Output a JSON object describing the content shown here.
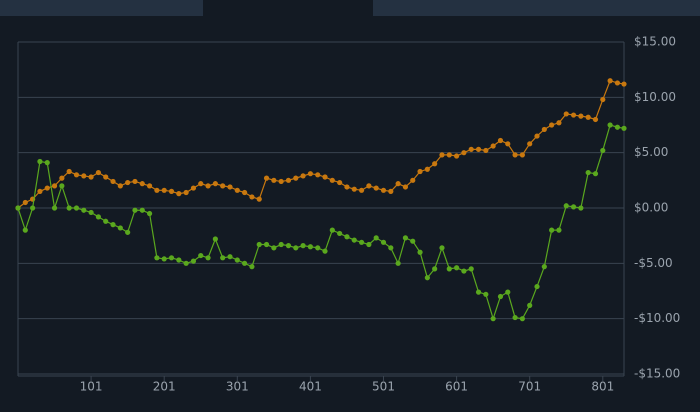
{
  "chart_data": {
    "type": "line",
    "x": [
      1,
      11,
      21,
      31,
      41,
      51,
      61,
      71,
      81,
      91,
      101,
      111,
      121,
      131,
      141,
      151,
      161,
      171,
      181,
      191,
      201,
      211,
      221,
      231,
      241,
      251,
      261,
      271,
      281,
      291,
      301,
      311,
      321,
      331,
      341,
      351,
      361,
      371,
      381,
      391,
      401,
      411,
      421,
      431,
      441,
      451,
      461,
      471,
      481,
      491,
      501,
      511,
      521,
      531,
      541,
      551,
      561,
      571,
      581,
      591,
      601,
      611,
      621,
      631,
      641,
      651,
      661,
      671,
      681,
      691,
      701,
      711,
      721,
      731,
      741,
      751,
      761,
      771,
      781,
      791,
      801,
      811,
      821,
      830
    ],
    "series": [
      {
        "color": "#c8780f",
        "values": [
          0,
          0.5,
          0.8,
          1.5,
          1.8,
          2.0,
          2.7,
          3.3,
          3.0,
          2.9,
          2.8,
          3.2,
          2.8,
          2.4,
          2.0,
          2.3,
          2.4,
          2.2,
          2.0,
          1.6,
          1.6,
          1.5,
          1.3,
          1.4,
          1.8,
          2.2,
          2.0,
          2.2,
          2.0,
          1.9,
          1.6,
          1.4,
          1.0,
          0.8,
          2.7,
          2.5,
          2.4,
          2.5,
          2.7,
          2.9,
          3.1,
          3.0,
          2.8,
          2.5,
          2.3,
          1.9,
          1.7,
          1.6,
          2.0,
          1.8,
          1.6,
          1.5,
          2.2,
          1.9,
          2.5,
          3.3,
          3.5,
          4.0,
          4.8,
          4.8,
          4.7,
          5.0,
          5.3,
          5.3,
          5.2,
          5.6,
          6.1,
          5.8,
          4.8,
          4.8,
          5.8,
          6.5,
          7.1,
          7.5,
          7.7,
          8.5,
          8.4,
          8.3,
          8.2,
          8.0,
          9.8,
          11.5,
          11.3,
          11.2
        ]
      },
      {
        "color": "#5aa81e",
        "values": [
          0,
          -2.0,
          0.0,
          4.2,
          4.1,
          0.0,
          2.0,
          0.0,
          0.0,
          -0.2,
          -0.4,
          -0.8,
          -1.2,
          -1.5,
          -1.8,
          -2.2,
          -0.2,
          -0.2,
          -0.5,
          -4.5,
          -4.6,
          -4.5,
          -4.7,
          -5.0,
          -4.8,
          -4.3,
          -4.5,
          -2.8,
          -4.5,
          -4.4,
          -4.7,
          -5.0,
          -5.3,
          -3.3,
          -3.3,
          -3.6,
          -3.3,
          -3.4,
          -3.6,
          -3.4,
          -3.5,
          -3.6,
          -3.9,
          -2.0,
          -2.3,
          -2.6,
          -2.9,
          -3.1,
          -3.3,
          -2.7,
          -3.1,
          -3.6,
          -5.0,
          -2.7,
          -3.0,
          -4.0,
          -6.3,
          -5.5,
          -3.6,
          -5.5,
          -5.4,
          -5.7,
          -5.5,
          -7.6,
          -7.8,
          -10.0,
          -8.0,
          -7.6,
          -9.9,
          -10.0,
          -8.8,
          -7.1,
          -5.3,
          -2.0,
          -2.0,
          0.2,
          0.1,
          0.0,
          3.2,
          3.1,
          5.2,
          7.5,
          7.3,
          7.2
        ]
      }
    ],
    "xlim": [
      1,
      830
    ],
    "xticks": [
      101,
      201,
      301,
      401,
      501,
      601,
      701,
      801
    ],
    "ylim": [
      -15,
      15
    ],
    "yticks": [
      {
        "value": -15,
        "label": "-$15.00"
      },
      {
        "value": -10,
        "label": "-$10.00"
      },
      {
        "value": -5,
        "label": "-$5.00"
      },
      {
        "value": 0,
        "label": "$0.00"
      },
      {
        "value": 5,
        "label": "$5.00"
      },
      {
        "value": 10,
        "label": "$10.00"
      },
      {
        "value": 15,
        "label": "$15.00"
      }
    ],
    "grid": true
  }
}
